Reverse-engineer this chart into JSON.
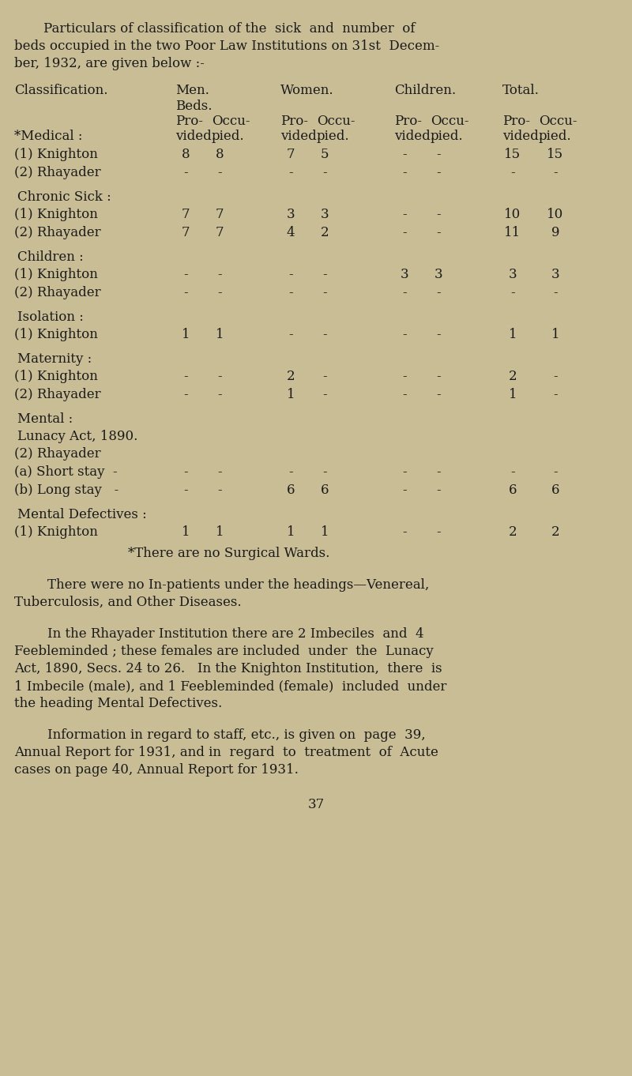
{
  "bg_color": "#c9bd96",
  "text_color": "#1a1a1a",
  "title_lines": [
    "Particulars of classification of the  sick  and  number  of",
    "beds occupied in the two Poor Law Institutions on 31st  Decem-",
    "ber, 1932, are given below :-"
  ],
  "rows": [
    {
      "type": "header1"
    },
    {
      "type": "header2"
    },
    {
      "type": "header3"
    },
    {
      "type": "header4"
    },
    {
      "type": "datarow",
      "label": "(1) Knighton",
      "values": [
        "8",
        "8",
        "7",
        "5",
        "-",
        "-",
        "15",
        "15"
      ]
    },
    {
      "type": "datarow",
      "label": "(2) Rhayader",
      "values": [
        "-",
        "-",
        "-",
        "-",
        "-",
        "-",
        "-",
        "-"
      ]
    },
    {
      "type": "cathead",
      "label": "Chronic Sick :"
    },
    {
      "type": "datarow",
      "label": "(1) Knighton",
      "values": [
        "7",
        "7",
        "3",
        "3",
        "-",
        "-",
        "10",
        "10"
      ]
    },
    {
      "type": "datarow",
      "label": "(2) Rhayader",
      "values": [
        "7",
        "7",
        "4",
        "2",
        "-",
        "-",
        "11",
        "9"
      ]
    },
    {
      "type": "cathead",
      "label": "Children :"
    },
    {
      "type": "datarow",
      "label": "(1) Knighton",
      "values": [
        "-",
        "-",
        "-",
        "-",
        "3",
        "3",
        "3",
        "3"
      ]
    },
    {
      "type": "datarow",
      "label": "(2) Rhayader",
      "values": [
        "-",
        "-",
        "-",
        "-",
        "-",
        "-",
        "-",
        "-"
      ]
    },
    {
      "type": "cathead",
      "label": "Isolation :"
    },
    {
      "type": "datarow",
      "label": "(1) Knighton",
      "values": [
        "1",
        "1",
        "-",
        "-",
        "-",
        "-",
        "1",
        "1"
      ]
    },
    {
      "type": "cathead",
      "label": "Maternity :"
    },
    {
      "type": "datarow",
      "label": "(1) Knighton",
      "values": [
        "-",
        "-",
        "2",
        "-",
        "-",
        "-",
        "2",
        "-"
      ]
    },
    {
      "type": "datarow",
      "label": "(2) Rhayader",
      "values": [
        "-",
        "-",
        "1",
        "-",
        "-",
        "-",
        "1",
        "-"
      ]
    },
    {
      "type": "cathead",
      "label": "Mental :"
    },
    {
      "type": "catline",
      "label": "Lunacy Act, 1890."
    },
    {
      "type": "plainrow",
      "label": "(2) Rhayader"
    },
    {
      "type": "datarow",
      "label": "(a) Short stay  -",
      "values": [
        "-",
        "-",
        "-",
        "-",
        "-",
        "-",
        "-",
        "-"
      ]
    },
    {
      "type": "datarow",
      "label": "(b) Long stay   -",
      "values": [
        "-",
        "-",
        "6",
        "6",
        "-",
        "-",
        "6",
        "6"
      ]
    },
    {
      "type": "cathead",
      "label": "Mental Defectives :"
    },
    {
      "type": "datarow",
      "label": "(1) Knighton",
      "values": [
        "1",
        "1",
        "1",
        "1",
        "-",
        "-",
        "2",
        "2"
      ]
    }
  ],
  "footnote": "*There are no Surgical Wards.",
  "para1_lines": [
    "        There were no In-patients under the headings—Venereal,",
    "Tuberculosis, and Other Diseases."
  ],
  "para2_lines": [
    "        In the Rhayader Institution there are 2 Imbeciles  and  4",
    "Feebleminded ; these females are included  under  the  Lunacy",
    "Act, 1890, Secs. 24 to 26.   In the Knighton Institution,  there  is",
    "1 Imbecile (male), and 1 Feebleminded (female)  included  under",
    "the heading Mental Defectives."
  ],
  "para3_lines": [
    "        Information in regard to staff, etc., is given on  page  39,",
    "Annual Report for 1931, and in  regard  to  treatment  of  Acute",
    "cases on page 40, Annual Report for 1931."
  ],
  "page_num": "37",
  "fig_width": 8.0,
  "fig_height": 13.62,
  "dpi": 100
}
